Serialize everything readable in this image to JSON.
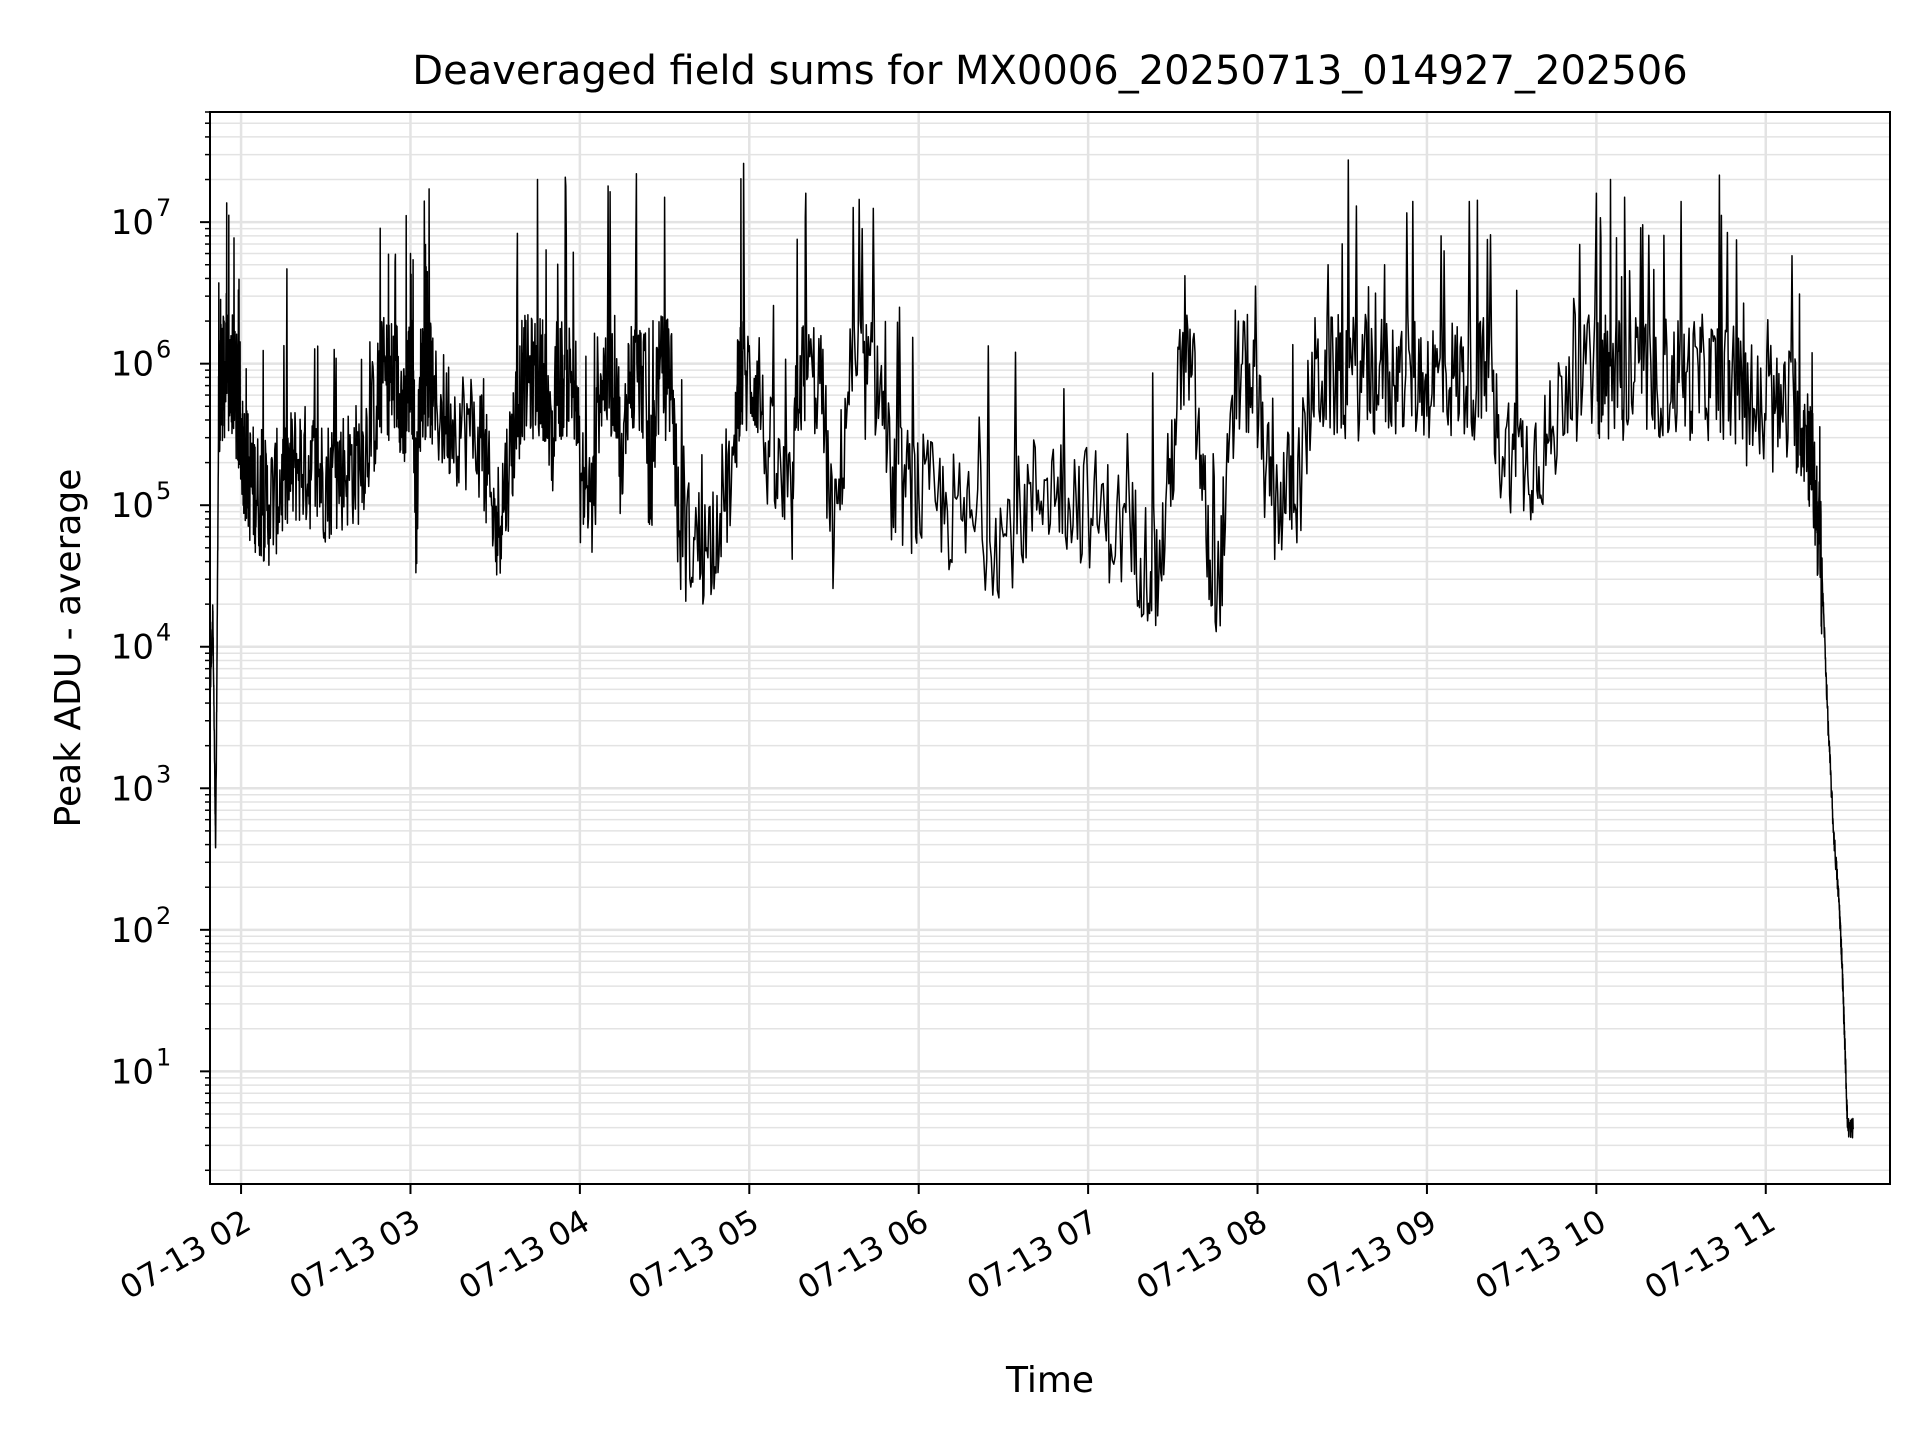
{
  "chart_data": {
    "type": "line",
    "title": "Deaveraged field sums for MX0006_20250713_014927_202506",
    "xlabel": "Time",
    "ylabel": "Peak ADU - average",
    "yscale": "log",
    "ylim": [
      1.6,
      60000000
    ],
    "xlim": [
      "2025-07-13 01:49",
      "2025-07-13 11:44"
    ],
    "grid": {
      "major": true,
      "minor": true
    },
    "line_color": "#000000",
    "grid_color": "#e3e3e3",
    "xticks": [
      {
        "value": "2025-07-13 02:00",
        "label": "07-13 02"
      },
      {
        "value": "2025-07-13 03:00",
        "label": "07-13 03"
      },
      {
        "value": "2025-07-13 04:00",
        "label": "07-13 04"
      },
      {
        "value": "2025-07-13 05:00",
        "label": "07-13 05"
      },
      {
        "value": "2025-07-13 06:00",
        "label": "07-13 06"
      },
      {
        "value": "2025-07-13 07:00",
        "label": "07-13 07"
      },
      {
        "value": "2025-07-13 08:00",
        "label": "07-13 08"
      },
      {
        "value": "2025-07-13 09:00",
        "label": "07-13 09"
      },
      {
        "value": "2025-07-13 10:00",
        "label": "07-13 10"
      },
      {
        "value": "2025-07-13 11:00",
        "label": "07-13 11"
      }
    ],
    "yticks": [
      {
        "value": 10,
        "base": "10",
        "exp": "1"
      },
      {
        "value": 100,
        "base": "10",
        "exp": "2"
      },
      {
        "value": 1000,
        "base": "10",
        "exp": "3"
      },
      {
        "value": 10000,
        "base": "10",
        "exp": "4"
      },
      {
        "value": 100000,
        "base": "10",
        "exp": "5"
      },
      {
        "value": 1000000,
        "base": "10",
        "exp": "6"
      },
      {
        "value": 10000000,
        "base": "10",
        "exp": "7"
      }
    ],
    "series": [
      {
        "points": [
          [
            "2025-07-13 01:49",
            4000
          ],
          [
            "2025-07-13 01:50",
            18000
          ],
          [
            "2025-07-13 01:51",
            380
          ],
          [
            "2025-07-13 01:52",
            300000
          ],
          [
            "2025-07-13 01:53",
            1500000
          ],
          [
            "2025-07-13 01:54",
            2000000
          ],
          [
            "2025-07-13 01:56",
            1300000
          ],
          [
            "2025-07-13 01:58",
            600000
          ],
          [
            "2025-07-13 02:00",
            300000
          ],
          [
            "2025-07-13 02:03",
            150000
          ],
          [
            "2025-07-13 02:06",
            120000
          ],
          [
            "2025-07-13 02:10",
            100000
          ],
          [
            "2025-07-13 02:15",
            150000
          ],
          [
            "2025-07-13 02:20",
            200000
          ],
          [
            "2025-07-13 02:25",
            180000
          ],
          [
            "2025-07-13 02:30",
            150000
          ],
          [
            "2025-07-13 02:36",
            180000
          ],
          [
            "2025-07-13 02:42",
            200000
          ],
          [
            "2025-07-13 02:48",
            500000
          ],
          [
            "2025-07-13 02:52",
            1500000
          ],
          [
            "2025-07-13 02:55",
            1200000
          ],
          [
            "2025-07-13 02:58",
            300000
          ],
          [
            "2025-07-13 03:00",
            6000000
          ],
          [
            "2025-07-13 03:02",
            80000
          ],
          [
            "2025-07-13 03:05",
            5000000
          ],
          [
            "2025-07-13 03:08",
            500000
          ],
          [
            "2025-07-13 03:15",
            400000
          ],
          [
            "2025-07-13 03:25",
            300000
          ],
          [
            "2025-07-13 03:30",
            60000
          ],
          [
            "2025-07-13 03:35",
            200000
          ],
          [
            "2025-07-13 03:40",
            900000
          ],
          [
            "2025-07-13 03:45",
            20000000
          ],
          [
            "2025-07-13 03:50",
            150000
          ],
          [
            "2025-07-13 03:55",
            18000000
          ],
          [
            "2025-07-13 04:00",
            150000
          ],
          [
            "2025-07-13 04:05",
            100000
          ],
          [
            "2025-07-13 04:10",
            18000000
          ],
          [
            "2025-07-13 04:15",
            120000
          ],
          [
            "2025-07-13 04:20",
            22000000
          ],
          [
            "2025-07-13 04:25",
            80000
          ],
          [
            "2025-07-13 04:30",
            15000000
          ],
          [
            "2025-07-13 04:35",
            60000
          ],
          [
            "2025-07-13 04:45",
            50000
          ],
          [
            "2025-07-13 04:55",
            200000
          ],
          [
            "2025-07-13 04:58",
            26000000
          ],
          [
            "2025-07-13 05:05",
            300000
          ],
          [
            "2025-07-13 05:15",
            80000
          ],
          [
            "2025-07-13 05:20",
            16000000
          ],
          [
            "2025-07-13 05:30",
            50000
          ],
          [
            "2025-07-13 05:40",
            9000000
          ],
          [
            "2025-07-13 05:50",
            150000
          ],
          [
            "2025-07-13 06:00",
            120000
          ],
          [
            "2025-07-13 06:15",
            80000
          ],
          [
            "2025-07-13 06:30",
            60000
          ],
          [
            "2025-07-13 06:45",
            150000
          ],
          [
            "2025-07-13 07:00",
            100000
          ],
          [
            "2025-07-13 07:15",
            60000
          ],
          [
            "2025-07-13 07:25",
            30000
          ],
          [
            "2025-07-13 07:35",
            2200000
          ],
          [
            "2025-07-13 07:45",
            15000
          ],
          [
            "2025-07-13 07:55",
            2000000
          ],
          [
            "2025-07-13 08:05",
            100000
          ],
          [
            "2025-07-13 08:15",
            150000
          ],
          [
            "2025-07-13 08:25",
            5000000
          ],
          [
            "2025-07-13 08:35",
            13000000
          ],
          [
            "2025-07-13 08:45",
            5000000
          ],
          [
            "2025-07-13 08:55",
            14000000
          ],
          [
            "2025-07-13 09:05",
            8000000
          ],
          [
            "2025-07-13 09:15",
            14000000
          ],
          [
            "2025-07-13 09:25",
            300000
          ],
          [
            "2025-07-13 09:35",
            200000
          ],
          [
            "2025-07-13 09:45",
            300000
          ],
          [
            "2025-07-13 10:00",
            16000000
          ],
          [
            "2025-07-13 10:05",
            20000000
          ],
          [
            "2025-07-13 10:10",
            15000000
          ],
          [
            "2025-07-13 10:20",
            400000
          ],
          [
            "2025-07-13 10:30",
            14000000
          ],
          [
            "2025-07-13 10:40",
            1500000
          ],
          [
            "2025-07-13 10:50",
            600000
          ],
          [
            "2025-07-13 11:00",
            400000
          ],
          [
            "2025-07-13 11:10",
            500000
          ],
          [
            "2025-07-13 11:15",
            300000
          ],
          [
            "2025-07-13 11:18",
            100000
          ],
          [
            "2025-07-13 11:20",
            30000
          ],
          [
            "2025-07-13 11:22",
            3000
          ],
          [
            "2025-07-13 11:24",
            500
          ],
          [
            "2025-07-13 11:26",
            150
          ],
          [
            "2025-07-13 11:27",
            60
          ],
          [
            "2025-07-13 11:28",
            16
          ],
          [
            "2025-07-13 11:29",
            4
          ],
          [
            "2025-07-13 11:31",
            4
          ]
        ]
      }
    ]
  }
}
